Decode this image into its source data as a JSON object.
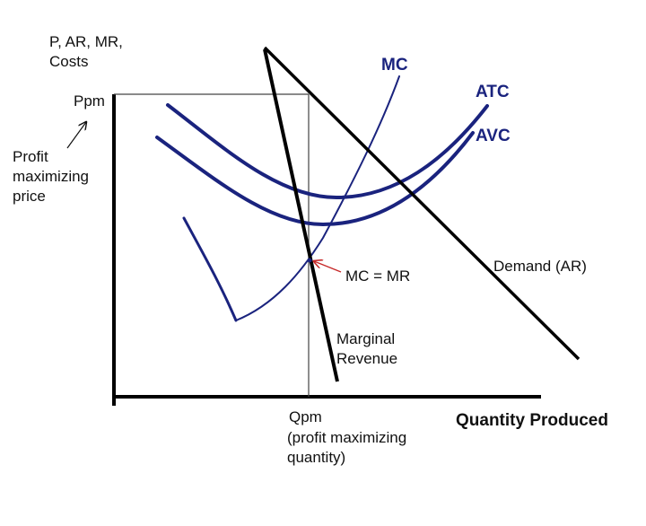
{
  "axes": {
    "y_label_line1": "P, AR, MR,",
    "y_label_line2": "Costs",
    "x_label": "Quantity Produced"
  },
  "price_marker": {
    "tick_label": "Ppm",
    "note_line1": "Profit",
    "note_line2": "maximizing",
    "note_line3": "price"
  },
  "quantity_marker": {
    "tick_label": "Qpm",
    "note_line1": "(profit maximizing",
    "note_line2": "quantity)"
  },
  "curves": {
    "mc": "MC",
    "atc": "ATC",
    "avc": "AVC",
    "demand": "Demand (AR)",
    "mr_line1": "Marginal",
    "mr_line2": "Revenue"
  },
  "annotation": {
    "intersection": "MC = MR"
  },
  "colors": {
    "cost_curves": "#1a237e",
    "demand_mr": "#000000",
    "annotation_arrow": "#c62828"
  }
}
